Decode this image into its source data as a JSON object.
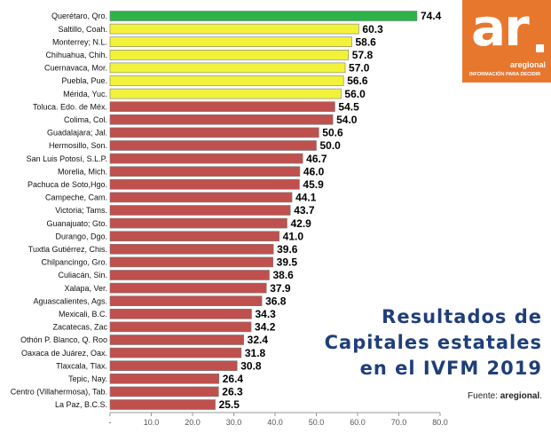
{
  "chart_data": {
    "type": "bar",
    "orientation": "horizontal",
    "categories": [
      "Querétaro, Qro.",
      "Saltillo, Coah.",
      "Monterrey; N.L.",
      "Chihuahua, Chih.",
      "Cuernavaca, Mor.",
      "Puebla, Pue.",
      "Mérida, Yuc.",
      "Toluca. Edo. de Méx.",
      "Colima, Col.",
      "Guadalajara; Jal.",
      "Hermosillo, Son.",
      "San Luis Potosí, S.L.P.",
      "Morelia, Mich.",
      "Pachuca de Soto,Hgo.",
      "Campeche, Cam.",
      "Victoria; Tams.",
      "Guanajuato; Gto.",
      "Durango, Dgo.",
      "Tuxtla Gutiérrez, Chis.",
      "Chilpancingo, Gro.",
      "Culiacán, Sin.",
      "Xalapa, Ver.",
      "Aguascalientes, Ags.",
      "Mexicali, B.C.",
      "Zacatecas, Zac",
      "Othón P. Blanco, Q. Roo",
      "Oaxaca de Juárez, Oax.",
      "Tlaxcala, Tlax.",
      "Tepic, Nay.",
      "Centro (Villahermosa), Tab.",
      "La Paz, B.C.S."
    ],
    "values": [
      74.4,
      60.3,
      58.6,
      57.8,
      57.0,
      56.6,
      56.0,
      54.5,
      54.0,
      50.6,
      50.0,
      46.7,
      46.0,
      45.9,
      44.1,
      43.7,
      42.9,
      41.0,
      39.6,
      39.5,
      38.6,
      37.9,
      36.8,
      34.3,
      34.2,
      32.4,
      31.8,
      30.8,
      26.4,
      26.3,
      25.5
    ],
    "value_labels": [
      "74.4",
      "60.3",
      "58.6",
      "57.8",
      "57.0",
      "56.6",
      "56.0",
      "54.5",
      "54.0",
      "50.6",
      "50.0",
      "46.7",
      "46.0",
      "45.9",
      "44.1",
      "43.7",
      "42.9",
      "41.0",
      "39.6",
      "39.5",
      "38.6",
      "37.9",
      "36.8",
      "34.3",
      "34.2",
      "32.4",
      "31.8",
      "30.8",
      "26.4",
      "26.3",
      "25.5"
    ],
    "xlim": [
      0,
      80
    ],
    "xticks": [
      0,
      10,
      20,
      30,
      40,
      50,
      60,
      70,
      80
    ],
    "xtick_labels": [
      "-",
      "10.0",
      "20.0",
      "30.0",
      "40.0",
      "50.0",
      "60.0",
      "70.0",
      "80.0"
    ],
    "grid": false,
    "colors": {
      "top": "#2db34a",
      "upper": "#f2f23a",
      "rest": "#c0504d",
      "bar_edge": "#7a7a7a"
    },
    "color_groups": [
      "top",
      "upper",
      "upper",
      "upper",
      "upper",
      "upper",
      "upper",
      "rest",
      "rest",
      "rest",
      "rest",
      "rest",
      "rest",
      "rest",
      "rest",
      "rest",
      "rest",
      "rest",
      "rest",
      "rest",
      "rest",
      "rest",
      "rest",
      "rest",
      "rest",
      "rest",
      "rest",
      "rest",
      "rest",
      "rest",
      "rest"
    ]
  },
  "title_lines": [
    "Resultados de",
    "Capitales estatales",
    "en el IVFM 2019"
  ],
  "source": {
    "prefix": "Fuente: ",
    "brand": "aregional",
    "suffix": "."
  },
  "logo": {
    "letters": "ar",
    "brand": "aregional",
    "tagline": "INFORMACIÓN PARA DECIDIR",
    "color": "#e8772e"
  }
}
